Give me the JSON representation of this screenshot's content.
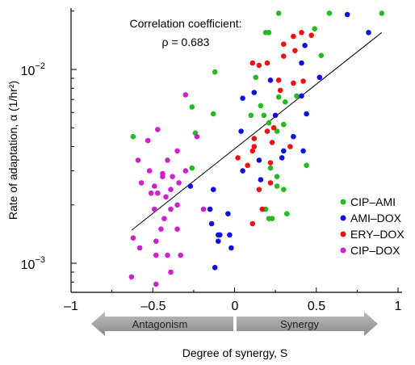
{
  "chart_data": {
    "type": "scatter",
    "xlabel": "Degree of synergy, S",
    "ylabel": "Rate of adaptation, α (1/hr²)",
    "xlim": [
      -1,
      1
    ],
    "ylim": [
      0.00065,
      0.02
    ],
    "y_scale": "log",
    "x_ticks": [
      -1,
      -0.5,
      0,
      0.5,
      1
    ],
    "x_tick_labels": [
      "–1",
      "–0.5",
      "0",
      "0.5",
      "1"
    ],
    "y_ticks": [
      0.001,
      0.01
    ],
    "y_tick_labels": [
      {
        "base": "10",
        "exp": "−3"
      },
      {
        "base": "10",
        "exp": "−2"
      }
    ],
    "annotation": {
      "line1": "Correlation coefficient:",
      "line2": "ρ = 0.683"
    },
    "fit_line": {
      "x": [
        -0.63,
        0.9
      ],
      "y": [
        0.00148,
        0.0155
      ]
    },
    "arrows": {
      "left": "Antagonism",
      "right": "Synergy"
    },
    "legend_position": "bottom-right",
    "series": [
      {
        "name": "CIP–AMI",
        "color": "#22bb22",
        "points": [
          [
            -0.62,
            0.0045
          ],
          [
            -0.12,
            0.0097
          ],
          [
            -0.26,
            0.0064
          ],
          [
            -0.24,
            0.0047
          ],
          [
            -0.26,
            0.0031
          ],
          [
            -0.13,
            0.0059
          ],
          [
            0.27,
            0.0195
          ],
          [
            0.58,
            0.0195
          ],
          [
            0.9,
            0.0195
          ],
          [
            0.49,
            0.0162
          ],
          [
            0.21,
            0.0155
          ],
          [
            0.19,
            0.0155
          ],
          [
            0.53,
            0.0118
          ],
          [
            0.13,
            0.0091
          ],
          [
            0.27,
            0.0072
          ],
          [
            0.31,
            0.0068
          ],
          [
            0.16,
            0.0065
          ],
          [
            0.38,
            0.0073
          ],
          [
            0.21,
            0.0053
          ],
          [
            0.18,
            0.0058
          ],
          [
            0.3,
            0.0052
          ],
          [
            0.26,
            0.0048
          ],
          [
            0.1,
            0.0058
          ],
          [
            0.44,
            0.0032
          ],
          [
            0.22,
            0.0031
          ],
          [
            0.26,
            0.0028
          ],
          [
            0.26,
            0.0025
          ],
          [
            0.3,
            0.0024
          ],
          [
            0.19,
            0.0019
          ],
          [
            0.21,
            0.0017
          ],
          [
            0.23,
            0.0017
          ],
          [
            0.32,
            0.0018
          ]
        ]
      },
      {
        "name": "AMI–DOX",
        "color": "#1010dd",
        "points": [
          [
            0.69,
            0.0192
          ],
          [
            0.82,
            0.0155
          ],
          [
            0.43,
            0.0133
          ],
          [
            0.41,
            0.0108
          ],
          [
            0.22,
            0.0088
          ],
          [
            0.12,
            0.0076
          ],
          [
            0.52,
            0.0091
          ],
          [
            0.05,
            0.0071
          ],
          [
            0.41,
            0.0073
          ],
          [
            0.25,
            0.0058
          ],
          [
            0.44,
            0.0059
          ],
          [
            0.36,
            0.0045
          ],
          [
            0.04,
            0.0048
          ],
          [
            0.42,
            0.0038
          ],
          [
            0.15,
            0.0034
          ],
          [
            0.05,
            0.003
          ],
          [
            0.3,
            0.0038
          ],
          [
            0.29,
            0.0035
          ],
          [
            0.16,
            0.0027
          ],
          [
            -0.27,
            0.0025
          ],
          [
            -0.13,
            0.0024
          ],
          [
            -0.15,
            0.0019
          ],
          [
            -0.04,
            0.0018
          ],
          [
            -0.14,
            0.0016
          ],
          [
            -0.09,
            0.0014
          ],
          [
            -0.1,
            0.0014
          ],
          [
            -0.1,
            0.0013
          ],
          [
            -0.03,
            0.0014
          ],
          [
            -0.12,
            0.00095
          ],
          [
            -0.02,
            0.0012
          ]
        ]
      },
      {
        "name": "ERY–DOX",
        "color": "#ee1111",
        "points": [
          [
            0.41,
            0.0155
          ],
          [
            0.47,
            0.015
          ],
          [
            0.3,
            0.0135
          ],
          [
            0.36,
            0.0148
          ],
          [
            0.11,
            0.0108
          ],
          [
            0.2,
            0.0108
          ],
          [
            0.37,
            0.0125
          ],
          [
            0.3,
            0.0117
          ],
          [
            0.15,
            0.0105
          ],
          [
            0.27,
            0.0088
          ],
          [
            0.42,
            0.0087
          ],
          [
            0.36,
            0.0085
          ],
          [
            0.28,
            0.0078
          ],
          [
            0.12,
            0.0044
          ],
          [
            0.23,
            0.0042
          ],
          [
            0.2,
            0.0048
          ],
          [
            0.24,
            0.005
          ],
          [
            0.34,
            0.004
          ],
          [
            0.12,
            0.004
          ],
          [
            0.11,
            0.0038
          ],
          [
            0.22,
            0.0033
          ],
          [
            0.02,
            0.0035
          ],
          [
            0.08,
            0.0032
          ],
          [
            0.15,
            0.0024
          ],
          [
            0.22,
            0.0026
          ],
          [
            0.17,
            0.0019
          ],
          [
            0.11,
            0.0016
          ]
        ]
      },
      {
        "name": "CIP–DOX",
        "color": "#cc22cc",
        "points": [
          [
            -0.3,
            0.0074
          ],
          [
            -0.47,
            0.0049
          ],
          [
            -0.53,
            0.0043
          ],
          [
            -0.35,
            0.0038
          ],
          [
            -0.23,
            0.0045
          ],
          [
            -0.41,
            0.0034
          ],
          [
            -0.59,
            0.0034
          ],
          [
            -0.52,
            0.003
          ],
          [
            -0.38,
            0.0028
          ],
          [
            -0.44,
            0.0029
          ],
          [
            -0.44,
            0.0028
          ],
          [
            -0.3,
            0.003
          ],
          [
            -0.49,
            0.0025
          ],
          [
            -0.39,
            0.0024
          ],
          [
            -0.34,
            0.0026
          ],
          [
            -0.57,
            0.0026
          ],
          [
            -0.47,
            0.0023
          ],
          [
            -0.51,
            0.0023
          ],
          [
            -0.42,
            0.0022
          ],
          [
            -0.35,
            0.002
          ],
          [
            -0.49,
            0.0019
          ],
          [
            -0.39,
            0.0019
          ],
          [
            -0.43,
            0.0017
          ],
          [
            -0.45,
            0.0015
          ],
          [
            -0.35,
            0.0015
          ],
          [
            -0.48,
            0.0013
          ],
          [
            -0.58,
            0.0012
          ],
          [
            -0.41,
            0.0011
          ],
          [
            -0.48,
            0.0011
          ],
          [
            -0.39,
            0.0009
          ],
          [
            -0.63,
            0.00085
          ],
          [
            -0.48,
            0.00078
          ],
          [
            -0.33,
            0.0011
          ],
          [
            -0.62,
            0.00135
          ],
          [
            -0.19,
            0.0019
          ]
        ]
      }
    ]
  }
}
